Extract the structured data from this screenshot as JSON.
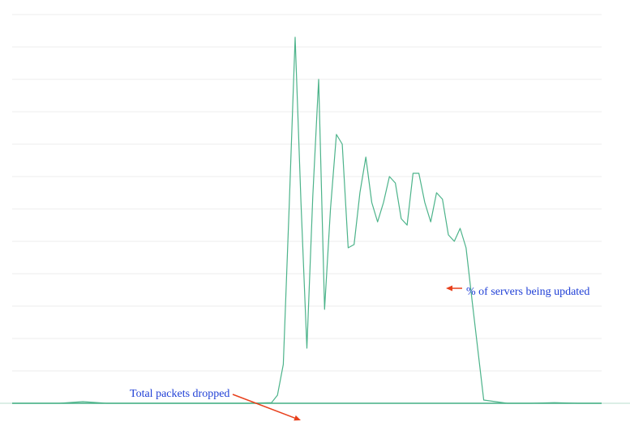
{
  "chart_data": {
    "type": "line",
    "grid": true,
    "xlim": [
      0,
      100
    ],
    "ylim": [
      0,
      12
    ],
    "line_color": "#4cb38a",
    "series": [
      {
        "x": [
          0,
          4,
          8,
          12,
          16,
          20,
          24,
          28,
          32,
          36,
          40,
          44,
          45,
          46,
          47,
          48,
          49,
          50,
          51,
          52,
          53,
          54,
          55,
          56,
          57,
          58,
          59,
          60,
          61,
          62,
          63,
          64,
          65,
          66,
          67,
          68,
          69,
          70,
          71,
          72,
          73,
          74,
          75,
          76,
          77,
          78,
          80,
          84,
          88,
          92,
          96,
          100
        ],
        "values": [
          0,
          0,
          0,
          0.05,
          0,
          0,
          0,
          0,
          0,
          0,
          0,
          0.02,
          0.25,
          1.2,
          6.1,
          11.3,
          6.2,
          1.7,
          6.4,
          10.0,
          2.9,
          6.0,
          8.3,
          8.0,
          4.8,
          4.9,
          6.5,
          7.6,
          6.2,
          5.6,
          6.2,
          7.0,
          6.8,
          5.7,
          5.5,
          7.1,
          7.1,
          6.2,
          5.6,
          6.5,
          6.3,
          5.2,
          5.0,
          5.4,
          4.8,
          3.2,
          0.1,
          0,
          0,
          0.02,
          0,
          0
        ]
      },
      {
        "x": [
          0,
          8,
          16,
          24,
          32,
          40,
          44,
          48,
          52,
          56,
          60,
          64,
          68,
          72,
          76,
          80,
          84,
          88,
          92,
          96,
          100
        ],
        "values": [
          0,
          0,
          0,
          0,
          0,
          0,
          0,
          0,
          0,
          0,
          0,
          0,
          0,
          0,
          0,
          0,
          0,
          0,
          0,
          0,
          0
        ]
      }
    ],
    "annotations": [
      {
        "text": "Total packets dropped",
        "color": "#1f3fd6",
        "arrow_color": "#e8401c",
        "target_series": 1
      },
      {
        "text": "% of servers being updated",
        "color": "#1f3fd6",
        "arrow_color": "#e8401c",
        "target_series": 0
      }
    ]
  }
}
